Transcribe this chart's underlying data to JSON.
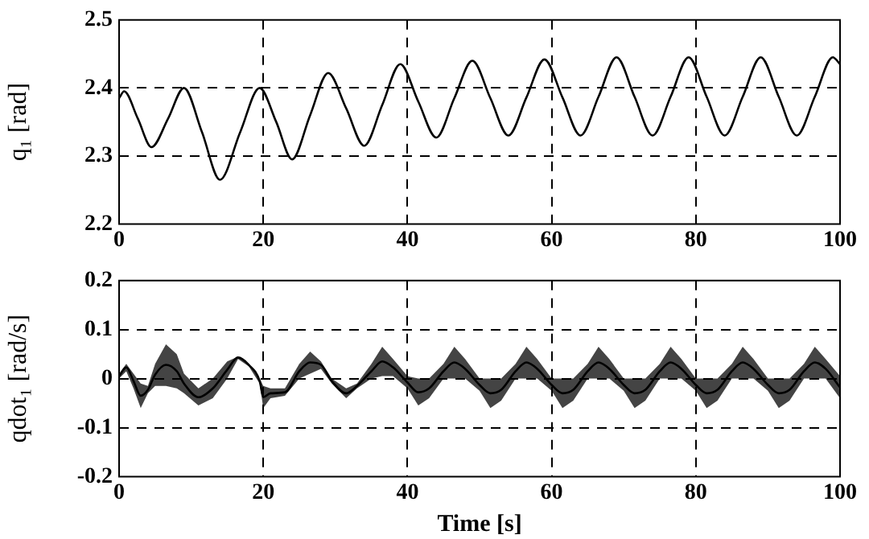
{
  "chart_data": [
    {
      "type": "line",
      "ylabel": "q₁ [rad]",
      "xlim": [
        0,
        100
      ],
      "xticks": [
        0,
        20,
        40,
        60,
        80,
        100
      ],
      "ylim": [
        2.2,
        2.5
      ],
      "yticks": [
        2.2,
        2.3,
        2.4,
        2.5
      ],
      "grid": true,
      "x": [
        0,
        0.7,
        2.6,
        4.5,
        6.8,
        9,
        11.5,
        14,
        16.8,
        19.5,
        21.8,
        24,
        26.5,
        29,
        31.5,
        34,
        36.5,
        39,
        41.5,
        44,
        46.5,
        49,
        51.5,
        54,
        56.5,
        59,
        61.5,
        64,
        66.5,
        69,
        71.5,
        74,
        76.5,
        79,
        81.5,
        84,
        86.5,
        89,
        91.5,
        94,
        96.5,
        99,
        100
      ],
      "series": [
        {
          "color": "#000000",
          "values": [
            2.385,
            2.395,
            2.355,
            2.313,
            2.355,
            2.4,
            2.335,
            2.265,
            2.335,
            2.4,
            2.35,
            2.295,
            2.36,
            2.422,
            2.37,
            2.315,
            2.375,
            2.435,
            2.38,
            2.327,
            2.385,
            2.44,
            2.385,
            2.33,
            2.386,
            2.442,
            2.386,
            2.33,
            2.387,
            2.445,
            2.387,
            2.33,
            2.387,
            2.445,
            2.387,
            2.33,
            2.387,
            2.445,
            2.387,
            2.33,
            2.387,
            2.445,
            2.435
          ]
        }
      ]
    },
    {
      "type": "line",
      "ylabel": "qdot₁ [rad/s]",
      "xlabel": "Time [s]",
      "xlim": [
        0,
        100
      ],
      "xticks": [
        0,
        20,
        40,
        60,
        80,
        100
      ],
      "ylim": [
        -0.2,
        0.2
      ],
      "yticks": [
        -0.2,
        -0.1,
        0,
        0.1,
        0.2
      ],
      "grid": true,
      "x": [
        0,
        1,
        2,
        3,
        4,
        5,
        6.5,
        8,
        9,
        11,
        13,
        15,
        16.5,
        18,
        19.5,
        20,
        21,
        23,
        25,
        26.5,
        28,
        29.5,
        31.5,
        33,
        35,
        36.5,
        38,
        40,
        41.5,
        43,
        45,
        46.5,
        48,
        50,
        51.5,
        53,
        55,
        56.5,
        58,
        60,
        61.5,
        63,
        65,
        66.5,
        68,
        70,
        71.5,
        73,
        75,
        76.5,
        78,
        80,
        81.5,
        83,
        85,
        86.5,
        88,
        90,
        91.5,
        93,
        95,
        96.5,
        98,
        100
      ],
      "series": [
        {
          "color": "#000000",
          "values": [
            0.005,
            0.023,
            -0.005,
            -0.035,
            -0.023,
            0.008,
            0.028,
            0.015,
            -0.01,
            -0.038,
            -0.02,
            0.018,
            0.043,
            0.028,
            -0.005,
            -0.038,
            -0.03,
            -0.028,
            0.015,
            0.033,
            0.028,
            -0.005,
            -0.03,
            -0.015,
            0.015,
            0.035,
            0.023,
            -0.008,
            -0.028,
            -0.02,
            0.015,
            0.033,
            0.02,
            -0.013,
            -0.03,
            -0.023,
            0.015,
            0.033,
            0.02,
            -0.013,
            -0.03,
            -0.023,
            0.015,
            0.033,
            0.02,
            -0.013,
            -0.03,
            -0.023,
            0.015,
            0.033,
            0.02,
            -0.013,
            -0.03,
            -0.023,
            0.015,
            0.033,
            0.02,
            -0.013,
            -0.03,
            -0.023,
            0.015,
            0.033,
            0.02,
            -0.018
          ],
          "upper": [
            0.01,
            0.03,
            0.01,
            -0.01,
            -0.015,
            0.03,
            0.07,
            0.05,
            0.01,
            -0.02,
            0,
            0.035,
            0.045,
            0.03,
            0,
            -0.015,
            -0.02,
            -0.02,
            0.03,
            0.055,
            0.035,
            0,
            -0.02,
            -0.01,
            0.03,
            0.065,
            0.04,
            0.005,
            0,
            0,
            0.03,
            0.065,
            0.04,
            0,
            0,
            0,
            0.03,
            0.065,
            0.04,
            0,
            0,
            0,
            0.03,
            0.065,
            0.04,
            0,
            0,
            0,
            0.03,
            0.065,
            0.04,
            0,
            0,
            0,
            0.03,
            0.065,
            0.04,
            0,
            0,
            0,
            0.03,
            0.065,
            0.04,
            0.005
          ],
          "lower": [
            0,
            0.015,
            -0.02,
            -0.06,
            -0.03,
            -0.015,
            -0.015,
            -0.02,
            -0.03,
            -0.055,
            -0.04,
            0,
            0.04,
            0.025,
            -0.01,
            -0.06,
            -0.04,
            -0.035,
            0,
            0.01,
            0.02,
            -0.01,
            -0.04,
            -0.02,
            0,
            0.005,
            0.005,
            -0.02,
            -0.055,
            -0.04,
            0,
            0,
            0,
            -0.025,
            -0.06,
            -0.045,
            0,
            0,
            0,
            -0.025,
            -0.06,
            -0.045,
            0,
            0,
            0,
            -0.025,
            -0.06,
            -0.045,
            0,
            0,
            0,
            -0.025,
            -0.06,
            -0.045,
            0,
            0,
            0,
            -0.025,
            -0.06,
            -0.045,
            0,
            0,
            0,
            -0.04
          ]
        }
      ]
    }
  ]
}
